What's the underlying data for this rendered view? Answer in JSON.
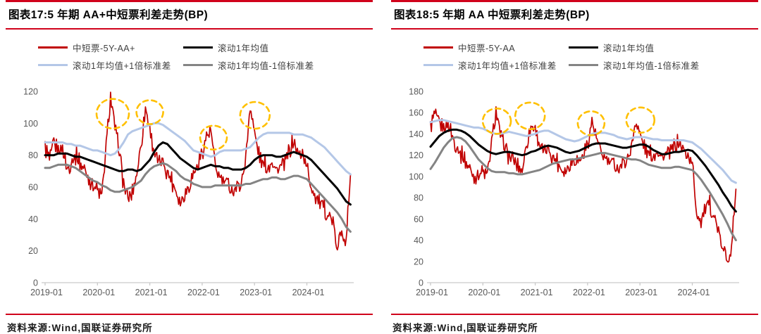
{
  "theme": {
    "background": "#ffffff",
    "rule_red": "#d0021b",
    "title_color": "#000000",
    "legend_text": "#3f3f3f",
    "axis_label": "#595959",
    "axis_line": "#c9c9c9",
    "highlight": "#ffc000"
  },
  "panels": [
    {
      "source": "资料来源:Wind,国联证券研究所"
    },
    {
      "source": "资料来源:Wind,国联证券研究所"
    }
  ],
  "chart_data": [
    {
      "type": "line",
      "title": "图表17:5 年期 AA+中短票利差走势(BP)",
      "x_unit": "month",
      "x_start": "2019-01",
      "x_end": "2024-11",
      "x_tick_labels": [
        "2019-01",
        "2020-01",
        "2021-01",
        "2022-01",
        "2023-01",
        "2024-01"
      ],
      "ylim": [
        0,
        120
      ],
      "ytick_step": 20,
      "grid": false,
      "legend_position": "top",
      "series": [
        {
          "name": "中短票-5Y-AA+",
          "color": "#c00000",
          "width": 1.7,
          "noise_amp": 5,
          "values": [
            86,
            76,
            88,
            82,
            85,
            71,
            76,
            80,
            75,
            71,
            66,
            62,
            58,
            54,
            85,
            117,
            98,
            82,
            62,
            52,
            56,
            68,
            88,
            110,
            97,
            82,
            74,
            76,
            70,
            64,
            58,
            50,
            56,
            62,
            68,
            74,
            82,
            92,
            95,
            72,
            66,
            64,
            61,
            58,
            60,
            63,
            78,
            112,
            94,
            80,
            74,
            72,
            77,
            70,
            72,
            76,
            82,
            88,
            80,
            82,
            72,
            60,
            54,
            50,
            46,
            42,
            38,
            19,
            36,
            25,
            68
          ]
        },
        {
          "name": "滚动1年均值",
          "color": "#000000",
          "width": 3,
          "values": [
            80,
            80,
            80,
            81,
            81,
            81,
            80,
            79,
            79,
            78,
            77,
            76,
            75,
            74,
            73,
            72,
            71,
            70,
            70,
            71,
            71,
            70,
            71,
            74,
            77,
            82,
            86,
            88,
            87,
            84,
            81,
            78,
            76,
            74,
            72,
            71,
            72,
            73,
            74,
            73,
            73,
            72,
            72,
            71,
            71,
            71,
            72,
            74,
            77,
            79,
            80,
            80,
            80,
            79,
            79,
            80,
            81,
            82,
            81,
            80,
            79,
            77,
            74,
            71,
            68,
            65,
            62,
            59,
            55,
            51,
            49
          ]
        },
        {
          "name": "滚动1年均值+1倍标准差",
          "color": "#b4c7e7",
          "width": 3,
          "values": [
            88,
            88,
            88,
            88,
            88,
            87,
            87,
            86,
            86,
            85,
            84,
            83,
            83,
            82,
            81,
            80,
            81,
            84,
            88,
            93,
            95,
            96,
            97,
            98,
            99,
            100,
            100,
            99,
            97,
            95,
            93,
            91,
            89,
            86,
            83,
            82,
            81,
            80,
            79,
            80,
            82,
            83,
            83,
            83,
            83,
            83,
            84,
            85,
            88,
            91,
            93,
            94,
            94,
            94,
            94,
            94,
            94,
            93,
            93,
            93,
            92,
            91,
            89,
            87,
            85,
            82,
            79,
            76,
            73,
            70,
            68
          ]
        },
        {
          "name": "滚动1年均值-1倍标准差",
          "color": "#848484",
          "width": 3,
          "values": [
            72,
            72,
            73,
            74,
            74,
            74,
            73,
            72,
            70,
            68,
            66,
            64,
            63,
            61,
            60,
            58,
            57,
            57,
            58,
            59,
            60,
            62,
            64,
            68,
            71,
            73,
            74,
            75,
            74,
            72,
            70,
            67,
            65,
            64,
            62,
            61,
            60,
            60,
            60,
            61,
            61,
            61,
            61,
            61,
            61,
            61,
            62,
            62,
            63,
            64,
            65,
            65,
            66,
            66,
            65,
            65,
            66,
            67,
            67,
            66,
            65,
            62,
            59,
            56,
            53,
            50,
            47,
            44,
            40,
            35,
            32
          ]
        }
      ],
      "annotations": {
        "color": "#ffc000",
        "circles": [
          {
            "m": 15.5,
            "v": 106,
            "r": 23
          },
          {
            "m": 24.0,
            "v": 107,
            "r": 19
          },
          {
            "m": 38.6,
            "v": 91,
            "r": 19
          },
          {
            "m": 48.1,
            "v": 105,
            "r": 21
          }
        ]
      }
    },
    {
      "type": "line",
      "title": "图表18:5 年期 AA 中短票利差走势(BP)",
      "x_unit": "month",
      "x_start": "2019-01",
      "x_end": "2024-11",
      "x_tick_labels": [
        "2019-01",
        "2020-01",
        "2021-01",
        "2022-01",
        "2023-01",
        "2024-01"
      ],
      "ylim": [
        0,
        180
      ],
      "ytick_step": 20,
      "grid": false,
      "legend_position": "top",
      "series": [
        {
          "name": "中短票-5Y-AA",
          "color": "#c00000",
          "width": 1.7,
          "noise_amp": 7,
          "values": [
            148,
            158,
            150,
            144,
            150,
            138,
            128,
            121,
            114,
            107,
            100,
            103,
            104,
            101,
            130,
            162,
            140,
            127,
            119,
            115,
            109,
            105,
            132,
            147,
            146,
            130,
            121,
            126,
            119,
            114,
            107,
            105,
            112,
            118,
            114,
            120,
            131,
            152,
            136,
            122,
            117,
            114,
            111,
            108,
            112,
            116,
            126,
            153,
            140,
            127,
            121,
            119,
            125,
            117,
            120,
            124,
            128,
            131,
            124,
            120,
            112,
            65,
            58,
            70,
            73,
            62,
            48,
            30,
            25,
            32,
            88
          ]
        },
        {
          "name": "滚动1年均值",
          "color": "#000000",
          "width": 3,
          "values": [
            128,
            133,
            138,
            141,
            143,
            144,
            144,
            143,
            141,
            138,
            134,
            130,
            127,
            124,
            122,
            121,
            122,
            123,
            123,
            122,
            121,
            120,
            121,
            123,
            124,
            126,
            128,
            129,
            128,
            127,
            125,
            123,
            122,
            123,
            124,
            126,
            128,
            130,
            131,
            131,
            131,
            130,
            129,
            128,
            127,
            127,
            128,
            129,
            130,
            130,
            128,
            125,
            123,
            121,
            121,
            122,
            123,
            123,
            124,
            125,
            124,
            120,
            115,
            110,
            104,
            98,
            92,
            85,
            79,
            72,
            67
          ]
        },
        {
          "name": "滚动1年均值+1倍标准差",
          "color": "#b4c7e7",
          "width": 3,
          "values": [
            151,
            152,
            153,
            153,
            152,
            151,
            150,
            149,
            148,
            147,
            146,
            146,
            145,
            143,
            141,
            140,
            140,
            141,
            142,
            141,
            140,
            139,
            138,
            139,
            140,
            142,
            143,
            143,
            141,
            139,
            137,
            135,
            134,
            133,
            134,
            136,
            138,
            140,
            141,
            141,
            141,
            140,
            139,
            137,
            136,
            135,
            136,
            137,
            137,
            137,
            136,
            135,
            135,
            134,
            134,
            134,
            134,
            134,
            134,
            133,
            132,
            129,
            126,
            122,
            118,
            114,
            110,
            106,
            101,
            96,
            94
          ]
        },
        {
          "name": "滚动1年均值-1倍标准差",
          "color": "#848484",
          "width": 3,
          "values": [
            107,
            113,
            120,
            127,
            132,
            136,
            137,
            136,
            133,
            128,
            122,
            116,
            112,
            108,
            105,
            104,
            104,
            104,
            103,
            103,
            102,
            102,
            103,
            104,
            105,
            106,
            108,
            110,
            112,
            113,
            114,
            115,
            116,
            116,
            117,
            118,
            119,
            120,
            121,
            122,
            122,
            121,
            120,
            119,
            118,
            117,
            116,
            116,
            115,
            113,
            111,
            110,
            109,
            108,
            108,
            108,
            109,
            109,
            108,
            107,
            106,
            102,
            97,
            91,
            85,
            78,
            71,
            64,
            56,
            47,
            40
          ]
        }
      ],
      "annotations": {
        "color": "#ffc000",
        "circles": [
          {
            "m": 15.2,
            "v": 152,
            "r": 20
          },
          {
            "m": 22.8,
            "v": 157,
            "r": 21
          },
          {
            "m": 36.8,
            "v": 150,
            "r": 19
          },
          {
            "m": 48.1,
            "v": 153,
            "r": 20
          }
        ]
      }
    }
  ]
}
